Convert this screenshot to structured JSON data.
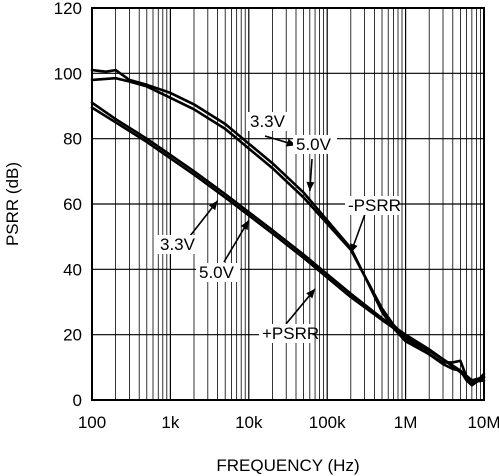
{
  "chart_data": {
    "type": "line",
    "xlabel": "FREQUENCY (Hz)",
    "ylabel": "PSRR (dB)",
    "x_scale": "log",
    "xlim": [
      100,
      10000000
    ],
    "ylim": [
      0,
      120
    ],
    "grid": true,
    "x_tick_values": [
      100,
      1000,
      10000,
      100000,
      1000000,
      10000000
    ],
    "x_tick_labels": [
      "100",
      "1k",
      "10k",
      "100k",
      "1M",
      "10M"
    ],
    "y_tick_values": [
      0,
      20,
      40,
      60,
      80,
      100,
      120
    ],
    "y_tick_labels": [
      "0",
      "20",
      "40",
      "60",
      "80",
      "100",
      "120"
    ],
    "series": [
      {
        "name": "-PSRR 3.3V",
        "x": [
          100,
          150,
          200,
          300,
          500,
          1000,
          2000,
          5000,
          10000,
          20000,
          50000,
          100000,
          200000,
          300000,
          500000,
          700000,
          1000000,
          2000000,
          3000000,
          4000000,
          5000000,
          6000000,
          7000000,
          8000000,
          10000000
        ],
        "y": [
          101,
          100.5,
          101,
          98,
          96.5,
          94,
          90.5,
          84.5,
          78.5,
          72.5,
          63.5,
          55,
          46.5,
          38,
          28,
          23,
          19,
          14,
          11.5,
          11.5,
          12,
          7,
          5,
          5.5,
          7
        ]
      },
      {
        "name": "-PSRR 5.0V",
        "x": [
          100,
          200,
          300,
          500,
          1000,
          2000,
          5000,
          10000,
          20000,
          50000,
          100000,
          200000,
          300000,
          500000,
          700000,
          1000000,
          2000000,
          3000000,
          4000000,
          5000000,
          6000000,
          7000000,
          8000000,
          10000000
        ],
        "y": [
          98,
          98.5,
          97.5,
          96,
          92.5,
          89,
          83,
          77,
          71,
          62,
          54,
          46,
          38,
          27,
          22,
          18,
          14,
          11,
          9.5,
          9,
          6,
          4.5,
          5.5,
          8
        ]
      },
      {
        "name": "+PSRR 3.3V",
        "x": [
          100,
          200,
          500,
          1000,
          2000,
          5000,
          10000,
          20000,
          50000,
          100000,
          200000,
          500000,
          1000000,
          2000000,
          3000000,
          5000000,
          7000000,
          10000000
        ],
        "y": [
          89.5,
          85,
          79,
          74,
          69,
          62,
          56.5,
          51,
          43.5,
          37.5,
          31.5,
          24.5,
          19.5,
          15,
          12.5,
          8.5,
          5.5,
          6
        ]
      },
      {
        "name": "+PSRR 5.0V",
        "x": [
          100,
          200,
          500,
          1000,
          2000,
          5000,
          10000,
          20000,
          50000,
          100000,
          200000,
          500000,
          1000000,
          2000000,
          3000000,
          5000000,
          7000000,
          10000000
        ],
        "y": [
          91,
          86,
          80,
          75,
          70,
          63,
          57.5,
          52,
          44.5,
          38.5,
          32.5,
          25,
          20,
          15.5,
          12.5,
          9,
          6,
          7
        ]
      }
    ],
    "annotations": [
      {
        "text": "3.3V",
        "points_to": [
          40000,
          78
        ]
      },
      {
        "text": "5.0V",
        "points_to": [
          60000,
          64
        ]
      },
      {
        "text": "-PSRR",
        "points_to": [
          200000,
          45
        ]
      },
      {
        "text": "3.3V",
        "points_to": [
          4000,
          61
        ]
      },
      {
        "text": "5.0V",
        "points_to": [
          10000,
          55
        ]
      },
      {
        "text": "+PSRR",
        "points_to": [
          70000,
          34
        ]
      }
    ]
  }
}
